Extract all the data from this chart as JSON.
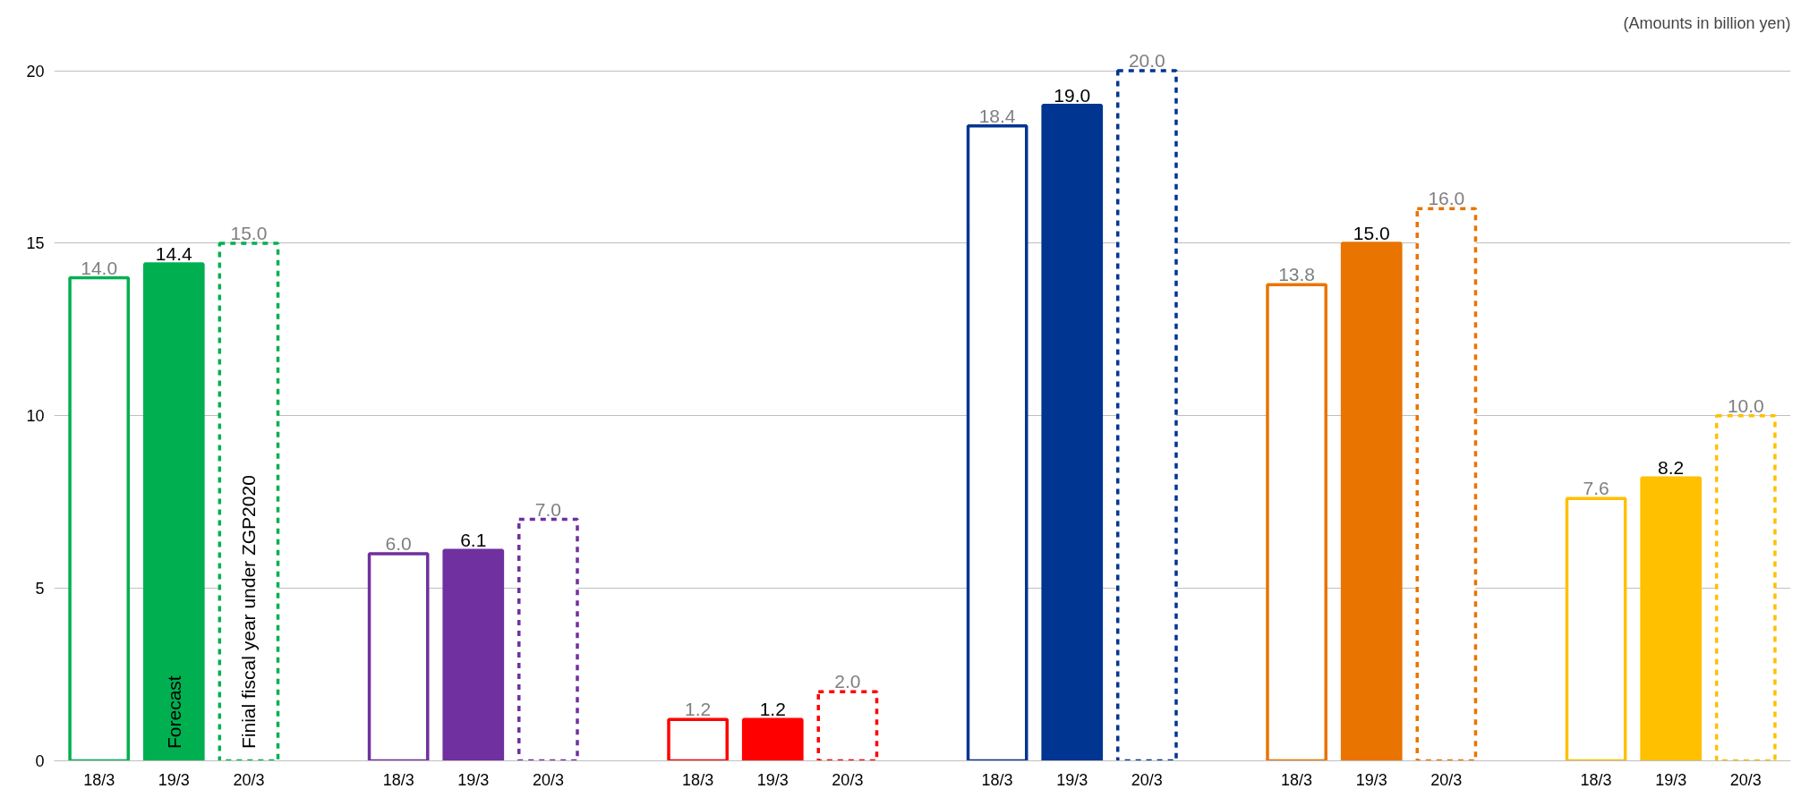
{
  "chart_data": {
    "type": "bar",
    "categories": [
      "18/3",
      "19/3",
      "20/3",
      null,
      "18/3",
      "19/3",
      "20/3",
      null,
      "18/3",
      "19/3",
      "20/3",
      null,
      "18/3",
      "19/3",
      "20/3",
      null,
      "18/3",
      "19/3",
      "20/3",
      null,
      "18/3",
      "19/3",
      "20/3"
    ],
    "series": [
      {
        "values": [
          14.0,
          null,
          null,
          null,
          6.0,
          null,
          null,
          null,
          1.2,
          null,
          null,
          null,
          18.4,
          null,
          null,
          null,
          13.8,
          null,
          null,
          null,
          7.6,
          null,
          null
        ],
        "value_labels": [
          "14.0",
          null,
          null,
          null,
          "6.0",
          null,
          null,
          null,
          "1.2",
          null,
          null,
          null,
          "18.4",
          null,
          null,
          null,
          "13.8",
          null,
          null,
          null,
          "7.6",
          null,
          null
        ],
        "colors": [
          "#00b050",
          null,
          null,
          null,
          "#7030a0",
          null,
          null,
          null,
          "#ff0000",
          null,
          null,
          null,
          "#003591",
          null,
          null,
          null,
          "#e97400",
          null,
          null,
          null,
          "#ffc000",
          null,
          null
        ],
        "line_style": "solid"
      },
      {
        "values": [
          null,
          14.4,
          null,
          null,
          null,
          6.1,
          null,
          null,
          null,
          1.2,
          null,
          null,
          null,
          19.0,
          null,
          null,
          null,
          15.0,
          null,
          null,
          null,
          8.2,
          null
        ],
        "value_labels": [
          null,
          "14.4",
          null,
          null,
          null,
          "6.1",
          null,
          null,
          null,
          "1.2",
          null,
          null,
          null,
          "19.0",
          null,
          null,
          null,
          "15.0",
          null,
          null,
          null,
          "8.2",
          null
        ],
        "colors": [
          null,
          "#00b050",
          null,
          null,
          null,
          "#7030a0",
          null,
          null,
          null,
          "#ff0000",
          null,
          null,
          null,
          "#003591",
          null,
          null,
          null,
          "#e97400",
          null,
          null,
          null,
          "#ffc000",
          null
        ]
      },
      {
        "values": [
          null,
          null,
          15.0,
          null,
          null,
          null,
          7.0,
          null,
          null,
          null,
          2.0,
          null,
          null,
          null,
          20.0,
          null,
          null,
          null,
          16.0,
          null,
          null,
          null,
          10.0
        ],
        "value_labels": [
          null,
          null,
          "15.0",
          null,
          null,
          null,
          "7.0",
          null,
          null,
          null,
          "2.0",
          null,
          null,
          null,
          "20.0",
          null,
          null,
          null,
          "16.0",
          null,
          null,
          null,
          "10.0"
        ],
        "colors": [
          null,
          null,
          "#00b050",
          null,
          null,
          null,
          "#7030a0",
          null,
          null,
          null,
          "#ff0000",
          null,
          null,
          null,
          "#003591",
          null,
          null,
          null,
          "#e97400",
          null,
          null,
          null,
          "#ffc000"
        ],
        "line_style": "dashed"
      }
    ],
    "ylim": [
      0,
      20
    ],
    "yticks": [
      0,
      5,
      10,
      15,
      20
    ],
    "grid": "y",
    "data_labels": true,
    "annotations": [
      "(Amounts in billion yen)",
      "Forecast",
      "Finial fiscal year under ZGP2020"
    ]
  }
}
